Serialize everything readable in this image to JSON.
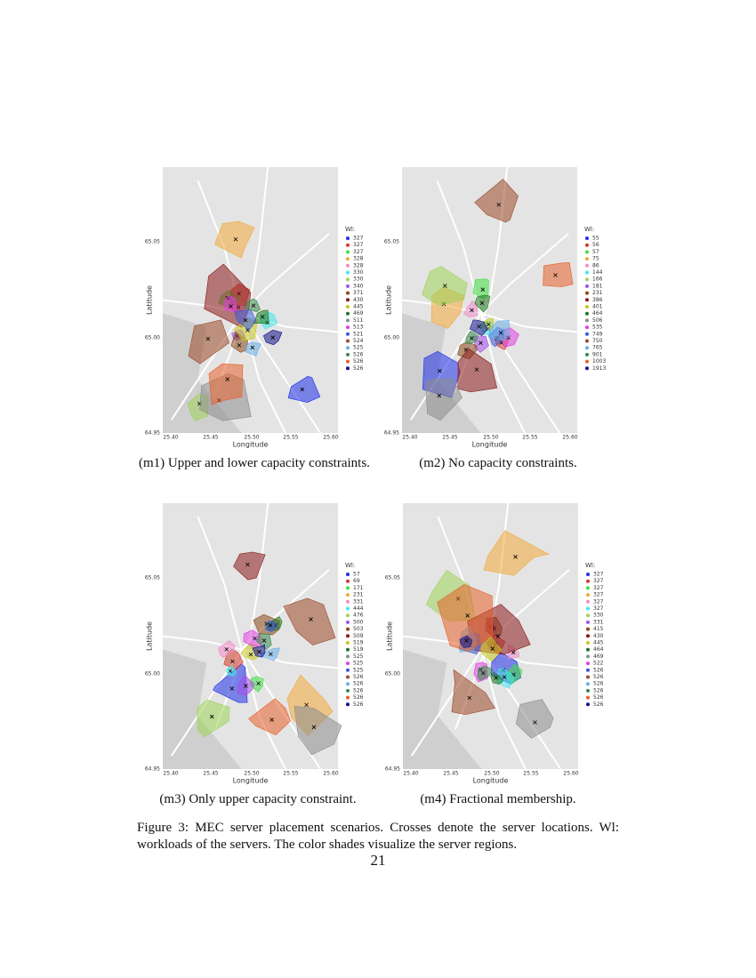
{
  "legend_title": "Wl:",
  "axes": {
    "x_label": "Longitude",
    "y_label": "Latitude",
    "x_ticks": [
      "25.40",
      "25.45",
      "25.50",
      "25.55",
      "25.60"
    ],
    "y_ticks": [
      "64.95",
      "65.00",
      "65.05"
    ]
  },
  "palette": [
    "#1f2fe8",
    "#d43a2a",
    "#3fe03f",
    "#f2a93b",
    "#f08cc8",
    "#3fe8e8",
    "#9fd35a",
    "#a64fe8",
    "#8a4a1c",
    "#8b1a1a",
    "#c8c820",
    "#1e7a1e",
    "#8e8e8e",
    "#e23fe2",
    "#3a5ad8",
    "#9c4a2a",
    "#6aaee6",
    "#3a8a4a",
    "#e8602a",
    "#10108a"
  ],
  "panels": [
    {
      "legend": [
        327,
        327,
        327,
        328,
        328,
        330,
        330,
        340,
        371,
        430,
        445,
        469,
        511,
        513,
        521,
        524,
        525,
        526,
        526,
        526
      ],
      "caption": "(m1) Upper and lower capacity con­straints."
    },
    {
      "legend": [
        55,
        56,
        57,
        75,
        86,
        144,
        166,
        181,
        231,
        386,
        401,
        464,
        506,
        535,
        749,
        750,
        765,
        901,
        1003,
        1913
      ],
      "caption": "(m2) No capacity constraints."
    },
    {
      "legend": [
        57,
        69,
        171,
        231,
        331,
        444,
        476,
        500,
        503,
        509,
        519,
        519,
        525,
        525,
        525,
        526,
        526,
        526,
        526,
        526
      ],
      "caption": "(m3) Only upper capacity constraint."
    },
    {
      "legend": [
        327,
        327,
        327,
        327,
        327,
        327,
        330,
        331,
        415,
        430,
        445,
        464,
        469,
        522,
        526,
        526,
        526,
        526,
        526,
        526
      ],
      "caption": "(m4) Fractional membership."
    }
  ],
  "figure_caption": "Figure 3: MEC server placement scenarios. Crosses denote the server locations. Wl: workloads of the servers. The color shades visualize the server regions.",
  "page_number": "21"
}
